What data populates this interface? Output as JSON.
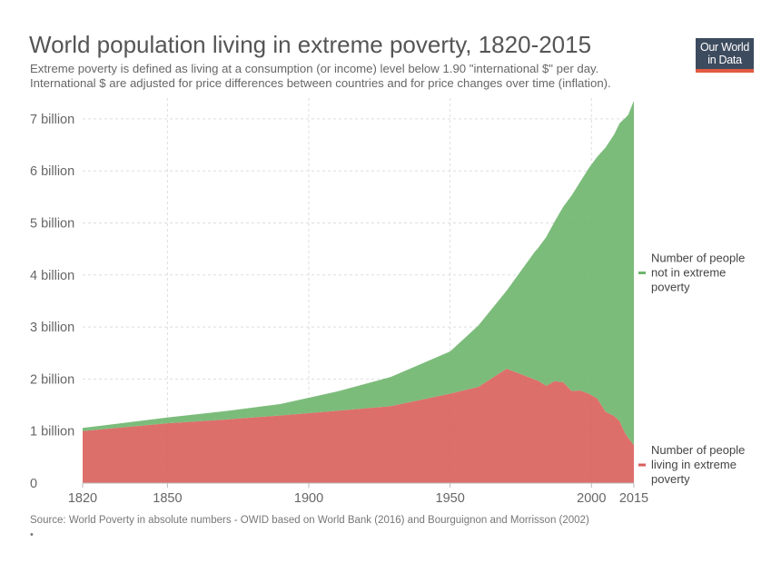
{
  "header": {
    "title": "World population living in extreme poverty, 1820-2015",
    "subtitle_line1": "Extreme poverty is defined as living at a consumption (or income) level below 1.90 \"international $\" per day.",
    "subtitle_line2": "International $ are adjusted for price differences between countries and for price changes over time (inflation)."
  },
  "logo": {
    "line1": "Our World",
    "line2": "in Data",
    "background": "#3d4b5e",
    "accent": "#e25a42"
  },
  "footer": {
    "source": "Source: World Poverty in absolute numbers - OWID based on World Bank (2016) and Bourguignon and Morrisson (2002)",
    "mark": "•"
  },
  "chart_data": {
    "type": "area",
    "stacked": true,
    "xlim": [
      1820,
      2015
    ],
    "ylim": [
      0,
      7400000000
    ],
    "x_ticks": [
      1820,
      1850,
      1900,
      1950,
      2000,
      2015
    ],
    "x_tick_labels": [
      "1820",
      "1850",
      "1900",
      "1950",
      "2000",
      "2015"
    ],
    "y_ticks": [
      0,
      1000000000,
      2000000000,
      3000000000,
      4000000000,
      5000000000,
      6000000000,
      7000000000
    ],
    "y_tick_labels": [
      "0",
      "1 billion",
      "2 billion",
      "3 billion",
      "4 billion",
      "5 billion",
      "6 billion",
      "7 billion"
    ],
    "grid": true,
    "legend_position": "right",
    "x": [
      1820,
      1850,
      1870,
      1890,
      1910,
      1929,
      1950,
      1960,
      1970,
      1980,
      1981,
      1984,
      1987,
      1990,
      1993,
      1996,
      1999,
      2002,
      2005,
      2008,
      2010,
      2011,
      2012,
      2013,
      2015
    ],
    "series": [
      {
        "name": "Number of people living in extreme poverty",
        "color": "#d95f5b",
        "values": [
          1000000000,
          1150000000,
          1220000000,
          1300000000,
          1390000000,
          1480000000,
          1720000000,
          1850000000,
          2200000000,
          1990000000,
          1970000000,
          1870000000,
          1960000000,
          1940000000,
          1770000000,
          1780000000,
          1720000000,
          1630000000,
          1370000000,
          1290000000,
          1190000000,
          1060000000,
          950000000,
          870000000,
          730000000
        ]
      },
      {
        "name": "Number of people not in extreme poverty",
        "color": "#6eb56d",
        "values": [
          60000000,
          110000000,
          160000000,
          220000000,
          370000000,
          560000000,
          810000000,
          1180000000,
          1500000000,
          2460000000,
          2540000000,
          2860000000,
          3070000000,
          3370000000,
          3760000000,
          4010000000,
          4330000000,
          4640000000,
          5080000000,
          5410000000,
          5730000000,
          5910000000,
          6070000000,
          6210000000,
          6620000000
        ]
      }
    ]
  }
}
